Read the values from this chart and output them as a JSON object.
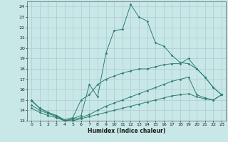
{
  "title": "",
  "xlabel": "Humidex (Indice chaleur)",
  "background_color": "#c8e8e8",
  "grid_color": "#b0c8c8",
  "line_color": "#2e7d6e",
  "xlim": [
    -0.5,
    23.5
  ],
  "ylim": [
    13,
    24.5
  ],
  "xticks": [
    0,
    1,
    2,
    3,
    4,
    5,
    6,
    7,
    8,
    9,
    10,
    11,
    12,
    13,
    14,
    15,
    16,
    17,
    18,
    19,
    20,
    21,
    22,
    23
  ],
  "yticks": [
    13,
    14,
    15,
    16,
    17,
    18,
    19,
    20,
    21,
    22,
    23,
    24
  ],
  "lines": [
    {
      "x": [
        0,
        1,
        2,
        3,
        4,
        5,
        6,
        7,
        8,
        9,
        10,
        11,
        12,
        13,
        14,
        15,
        16,
        17,
        18,
        19,
        20,
        21,
        22,
        23
      ],
      "y": [
        14.9,
        14.2,
        13.8,
        13.5,
        13.0,
        13.2,
        13.5,
        16.5,
        15.3,
        19.5,
        21.7,
        21.8,
        24.2,
        23.0,
        22.6,
        20.5,
        20.2,
        19.3,
        18.6,
        18.5,
        18.0,
        17.2,
        16.2,
        15.5
      ]
    },
    {
      "x": [
        0,
        1,
        2,
        3,
        4,
        5,
        6,
        7,
        8,
        9,
        10,
        11,
        12,
        13,
        14,
        15,
        16,
        17,
        18,
        19,
        20,
        21,
        22,
        23
      ],
      "y": [
        15.0,
        14.2,
        13.8,
        13.5,
        13.1,
        13.3,
        15.0,
        15.5,
        16.5,
        17.0,
        17.3,
        17.6,
        17.8,
        18.0,
        18.0,
        18.2,
        18.4,
        18.5,
        18.5,
        19.0,
        18.0,
        17.2,
        16.2,
        15.5
      ]
    },
    {
      "x": [
        0,
        1,
        2,
        3,
        4,
        5,
        6,
        7,
        8,
        9,
        10,
        11,
        12,
        13,
        14,
        15,
        16,
        17,
        18,
        19,
        20,
        21,
        22,
        23
      ],
      "y": [
        14.5,
        14.0,
        13.7,
        13.4,
        13.0,
        13.1,
        13.3,
        13.6,
        14.0,
        14.4,
        14.7,
        15.0,
        15.3,
        15.6,
        15.9,
        16.2,
        16.5,
        16.8,
        17.0,
        17.2,
        15.5,
        15.2,
        15.0,
        15.5
      ]
    },
    {
      "x": [
        0,
        1,
        2,
        3,
        4,
        5,
        6,
        7,
        8,
        9,
        10,
        11,
        12,
        13,
        14,
        15,
        16,
        17,
        18,
        19,
        20,
        21,
        22,
        23
      ],
      "y": [
        14.2,
        13.8,
        13.5,
        13.3,
        13.0,
        13.0,
        13.2,
        13.4,
        13.6,
        13.8,
        14.0,
        14.2,
        14.4,
        14.6,
        14.8,
        15.0,
        15.2,
        15.4,
        15.5,
        15.6,
        15.3,
        15.1,
        15.0,
        15.5
      ]
    }
  ]
}
